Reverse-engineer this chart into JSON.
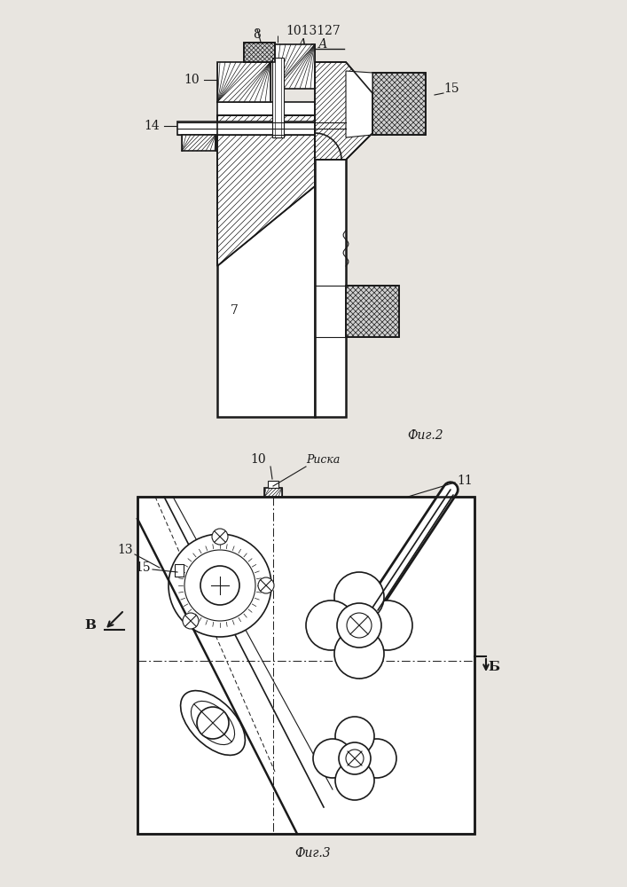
{
  "title": "1013127",
  "fig2_label": "А - А",
  "fig2_caption": "Фиг.2",
  "fig3_caption": "Фиг.3",
  "bg_color": "#e8e5e0",
  "line_color": "#1a1a1a",
  "label_8": "8",
  "label_10": "10",
  "label_14": "14",
  "label_15": "15",
  "label_7": "7",
  "label_riska": "Риска",
  "label_11": "11",
  "label_13": "13",
  "label_15b": "15",
  "label_B": "В",
  "label_B2": "Б"
}
